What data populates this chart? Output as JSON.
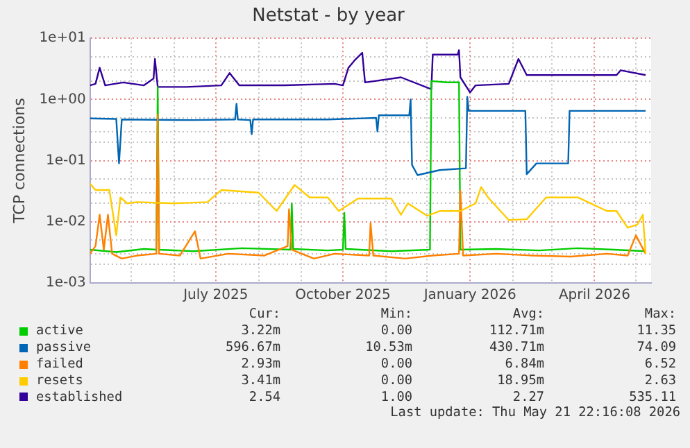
{
  "chart_data": {
    "type": "line",
    "title": "Netstat - by year",
    "ylabel": "TCP connections",
    "log": "y",
    "grid": true,
    "legend": "bottom",
    "marker": "none",
    "line_style": "solid",
    "xlim": [
      "2025-04-01",
      "2026-05-12"
    ],
    "xticks": [
      {
        "value": "2025-05-01",
        "label": null
      },
      {
        "value": "2025-06-01",
        "label": null
      },
      {
        "value": "2025-07-01",
        "label": "July 2025"
      },
      {
        "value": "2025-08-01",
        "label": null
      },
      {
        "value": "2025-09-01",
        "label": null
      },
      {
        "value": "2025-10-01",
        "label": "October 2025"
      },
      {
        "value": "2025-11-01",
        "label": null
      },
      {
        "value": "2025-12-01",
        "label": null
      },
      {
        "value": "2026-01-01",
        "label": "January 2026"
      },
      {
        "value": "2026-02-01",
        "label": null
      },
      {
        "value": "2026-03-01",
        "label": null
      },
      {
        "value": "2026-04-01",
        "label": "April 2026"
      },
      {
        "value": "2026-05-01",
        "label": null
      }
    ],
    "ylim": [
      0.001,
      10
    ],
    "yticks": [
      {
        "value": 0.001,
        "label": "1e-03"
      },
      {
        "value": 0.002,
        "label": null
      },
      {
        "value": 0.003,
        "label": null
      },
      {
        "value": 0.005,
        "label": null
      },
      {
        "value": 0.01,
        "label": "1e-02"
      },
      {
        "value": 0.02,
        "label": null
      },
      {
        "value": 0.03,
        "label": null
      },
      {
        "value": 0.05,
        "label": null
      },
      {
        "value": 0.1,
        "label": "1e-01"
      },
      {
        "value": 0.2,
        "label": null
      },
      {
        "value": 0.3,
        "label": null
      },
      {
        "value": 0.5,
        "label": null
      },
      {
        "value": 1,
        "label": "1e+00"
      },
      {
        "value": 2,
        "label": null
      },
      {
        "value": 3,
        "label": null
      },
      {
        "value": 5,
        "label": null
      },
      {
        "value": 10,
        "label": "1e+01"
      }
    ],
    "series": [
      {
        "name": "active",
        "color": "#00cc00",
        "x": [
          "2025-04-01",
          "2025-04-20",
          "2025-05-10",
          "2025-05-19",
          "2025-05-20",
          "2025-05-21",
          "2025-06-15",
          "2025-07-20",
          "2025-08-24",
          "2025-08-25",
          "2025-08-26",
          "2025-09-20",
          "2025-10-01",
          "2025-10-02",
          "2025-10-03",
          "2025-11-05",
          "2025-12-03",
          "2025-12-04",
          "2025-12-15",
          "2025-12-24",
          "2025-12-25",
          "2026-01-20",
          "2026-02-20",
          "2026-03-20",
          "2026-04-15",
          "2026-05-08"
        ],
        "values": [
          0.0035,
          0.0032,
          0.0036,
          0.0035,
          1.6,
          0.0035,
          0.0033,
          0.0037,
          0.0035,
          0.02,
          0.0036,
          0.0034,
          0.0035,
          0.014,
          0.0036,
          0.0033,
          0.0035,
          2.0,
          1.9,
          1.9,
          0.0035,
          0.0036,
          0.0034,
          0.0037,
          0.0035,
          0.0033
        ]
      },
      {
        "name": "passive",
        "color": "#0066b3",
        "x": [
          "2025-04-01",
          "2025-04-20",
          "2025-04-22",
          "2025-04-24",
          "2025-06-15",
          "2025-07-15",
          "2025-07-16",
          "2025-07-17",
          "2025-07-26",
          "2025-07-27",
          "2025-07-28",
          "2025-09-20",
          "2025-10-25",
          "2025-10-26",
          "2025-10-27",
          "2025-11-18",
          "2025-11-19",
          "2025-11-20",
          "2025-11-24",
          "2025-12-10",
          "2025-12-29",
          "2025-12-30",
          "2025-12-31",
          "2026-02-10",
          "2026-02-11",
          "2026-02-18",
          "2026-03-13",
          "2026-03-14",
          "2026-05-08"
        ],
        "values": [
          0.49,
          0.48,
          0.09,
          0.47,
          0.46,
          0.47,
          0.85,
          0.47,
          0.46,
          0.27,
          0.47,
          0.47,
          0.5,
          0.3,
          0.55,
          0.55,
          1.0,
          0.085,
          0.058,
          0.07,
          0.075,
          1.1,
          0.65,
          0.65,
          0.06,
          0.09,
          0.09,
          0.65,
          0.65
        ]
      },
      {
        "name": "failed",
        "color": "#ff8000",
        "x": [
          "2025-04-01",
          "2025-04-05",
          "2025-04-08",
          "2025-04-11",
          "2025-04-14",
          "2025-04-17",
          "2025-04-24",
          "2025-05-05",
          "2025-05-19",
          "2025-05-20",
          "2025-05-21",
          "2025-06-05",
          "2025-06-16",
          "2025-06-20",
          "2025-07-10",
          "2025-08-05",
          "2025-08-22",
          "2025-08-23",
          "2025-08-25",
          "2025-09-10",
          "2025-09-25",
          "2025-10-20",
          "2025-10-21",
          "2025-10-23",
          "2025-11-15",
          "2025-12-05",
          "2025-12-24",
          "2025-12-25",
          "2025-12-27",
          "2026-01-20",
          "2026-02-15",
          "2026-03-15",
          "2026-04-10",
          "2026-04-25",
          "2026-05-01",
          "2026-05-08"
        ],
        "values": [
          0.003,
          0.004,
          0.013,
          0.0035,
          0.013,
          0.003,
          0.0025,
          0.0028,
          0.003,
          0.57,
          0.003,
          0.0028,
          0.007,
          0.0025,
          0.003,
          0.0028,
          0.004,
          0.016,
          0.0035,
          0.0025,
          0.003,
          0.0028,
          0.0095,
          0.0028,
          0.0025,
          0.0028,
          0.003,
          0.032,
          0.0028,
          0.003,
          0.0028,
          0.0027,
          0.003,
          0.0028,
          0.006,
          0.003
        ]
      },
      {
        "name": "resets",
        "color": "#ffcc00",
        "x": [
          "2025-04-01",
          "2025-04-05",
          "2025-04-15",
          "2025-04-20",
          "2025-04-23",
          "2025-04-28",
          "2025-05-05",
          "2025-06-01",
          "2025-06-25",
          "2025-07-05",
          "2025-08-01",
          "2025-08-14",
          "2025-08-27",
          "2025-09-07",
          "2025-09-20",
          "2025-09-28",
          "2025-10-12",
          "2025-11-05",
          "2025-11-12",
          "2025-11-17",
          "2025-12-01",
          "2025-12-10",
          "2025-12-25",
          "2026-01-05",
          "2026-01-09",
          "2026-01-14",
          "2026-01-29",
          "2026-02-11",
          "2026-02-25",
          "2026-03-20",
          "2026-04-10",
          "2026-04-17",
          "2026-04-25",
          "2026-05-02",
          "2026-05-06",
          "2026-05-08"
        ],
        "values": [
          0.042,
          0.033,
          0.033,
          0.006,
          0.025,
          0.02,
          0.021,
          0.02,
          0.021,
          0.033,
          0.03,
          0.015,
          0.04,
          0.025,
          0.025,
          0.015,
          0.024,
          0.024,
          0.013,
          0.02,
          0.0125,
          0.015,
          0.015,
          0.02,
          0.037,
          0.025,
          0.0107,
          0.011,
          0.025,
          0.025,
          0.015,
          0.015,
          0.008,
          0.009,
          0.013,
          0.003
        ]
      },
      {
        "name": "established",
        "color": "#330099",
        "x": [
          "2025-04-01",
          "2025-04-05",
          "2025-04-08",
          "2025-04-12",
          "2025-04-25",
          "2025-05-10",
          "2025-05-17",
          "2025-05-18",
          "2025-05-20",
          "2025-06-10",
          "2025-07-05",
          "2025-07-11",
          "2025-07-18",
          "2025-08-20",
          "2025-09-25",
          "2025-10-01",
          "2025-10-05",
          "2025-10-10",
          "2025-10-15",
          "2025-10-17",
          "2025-11-12",
          "2025-12-03",
          "2025-12-04",
          "2025-12-05",
          "2025-12-23",
          "2025-12-24",
          "2025-12-25",
          "2026-01-01",
          "2026-01-05",
          "2026-01-29",
          "2026-02-05",
          "2026-02-11",
          "2026-03-15",
          "2026-04-17",
          "2026-04-20",
          "2026-05-08"
        ],
        "values": [
          1.7,
          1.8,
          3.3,
          1.7,
          1.9,
          1.7,
          2.2,
          4.6,
          1.6,
          1.6,
          1.7,
          2.7,
          1.7,
          1.7,
          1.8,
          1.7,
          3.3,
          4.5,
          5.8,
          1.9,
          2.3,
          1.5,
          1.5,
          5.4,
          5.4,
          6.4,
          2.3,
          1.3,
          1.7,
          1.8,
          4.6,
          2.5,
          2.5,
          2.5,
          3.0,
          2.5
        ]
      }
    ],
    "annotations": [
      "Cur:",
      "Min:",
      "Avg:",
      "Max:",
      "3.22m",
      "0.00",
      "112.71m",
      "11.35",
      "596.67m",
      "10.53m",
      "430.71m",
      "74.09",
      "2.93m",
      "0.00",
      "6.84m",
      "6.52",
      "3.41m",
      "0.00",
      "18.95m",
      "2.63",
      "2.54",
      "1.00",
      "2.27",
      "535.11",
      "Last update: Thu May 21 22:16:08 2026"
    ]
  }
}
